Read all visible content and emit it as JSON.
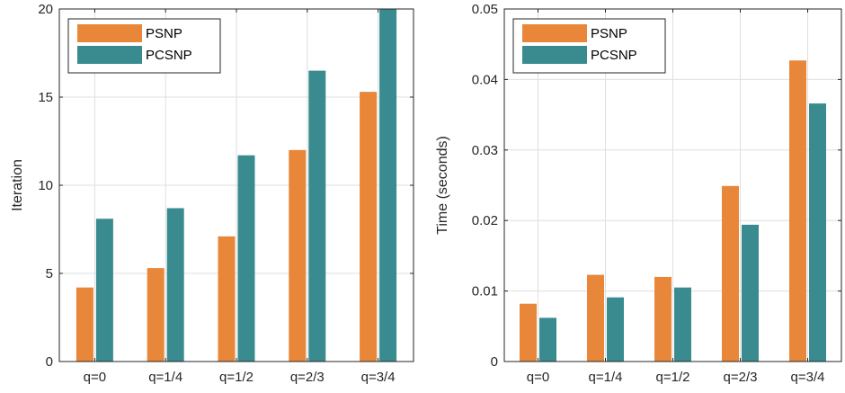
{
  "chart_data": [
    {
      "type": "bar",
      "categories": [
        "q=0",
        "q=1/4",
        "q=1/2",
        "q=2/3",
        "q=3/4"
      ],
      "series": [
        {
          "name": "PSNP",
          "values": [
            4.2,
            5.3,
            7.1,
            12.0,
            15.3
          ],
          "color": "#E8873A"
        },
        {
          "name": "PCSNP",
          "values": [
            8.1,
            8.7,
            11.7,
            16.5,
            20.0
          ],
          "color": "#3A8B8F"
        }
      ],
      "xlabel": "",
      "ylabel": "Iteration",
      "ylim": [
        0,
        20
      ],
      "yticks": [
        "0",
        "5",
        "10",
        "15",
        "20"
      ],
      "grid": true,
      "legend_position": "top-left"
    },
    {
      "type": "bar",
      "categories": [
        "q=0",
        "q=1/4",
        "q=1/2",
        "q=2/3",
        "q=3/4"
      ],
      "series": [
        {
          "name": "PSNP",
          "values": [
            0.0082,
            0.0123,
            0.012,
            0.0249,
            0.0427
          ],
          "color": "#E8873A"
        },
        {
          "name": "PCSNP",
          "values": [
            0.0062,
            0.0091,
            0.0105,
            0.0194,
            0.0366
          ],
          "color": "#3A8B8F"
        }
      ],
      "xlabel": "",
      "ylabel": "Time (seconds)",
      "ylim": [
        0,
        0.05
      ],
      "yticks": [
        "0",
        "0.01",
        "0.02",
        "0.03",
        "0.04",
        "0.05"
      ],
      "grid": true,
      "legend_position": "top-left"
    }
  ]
}
